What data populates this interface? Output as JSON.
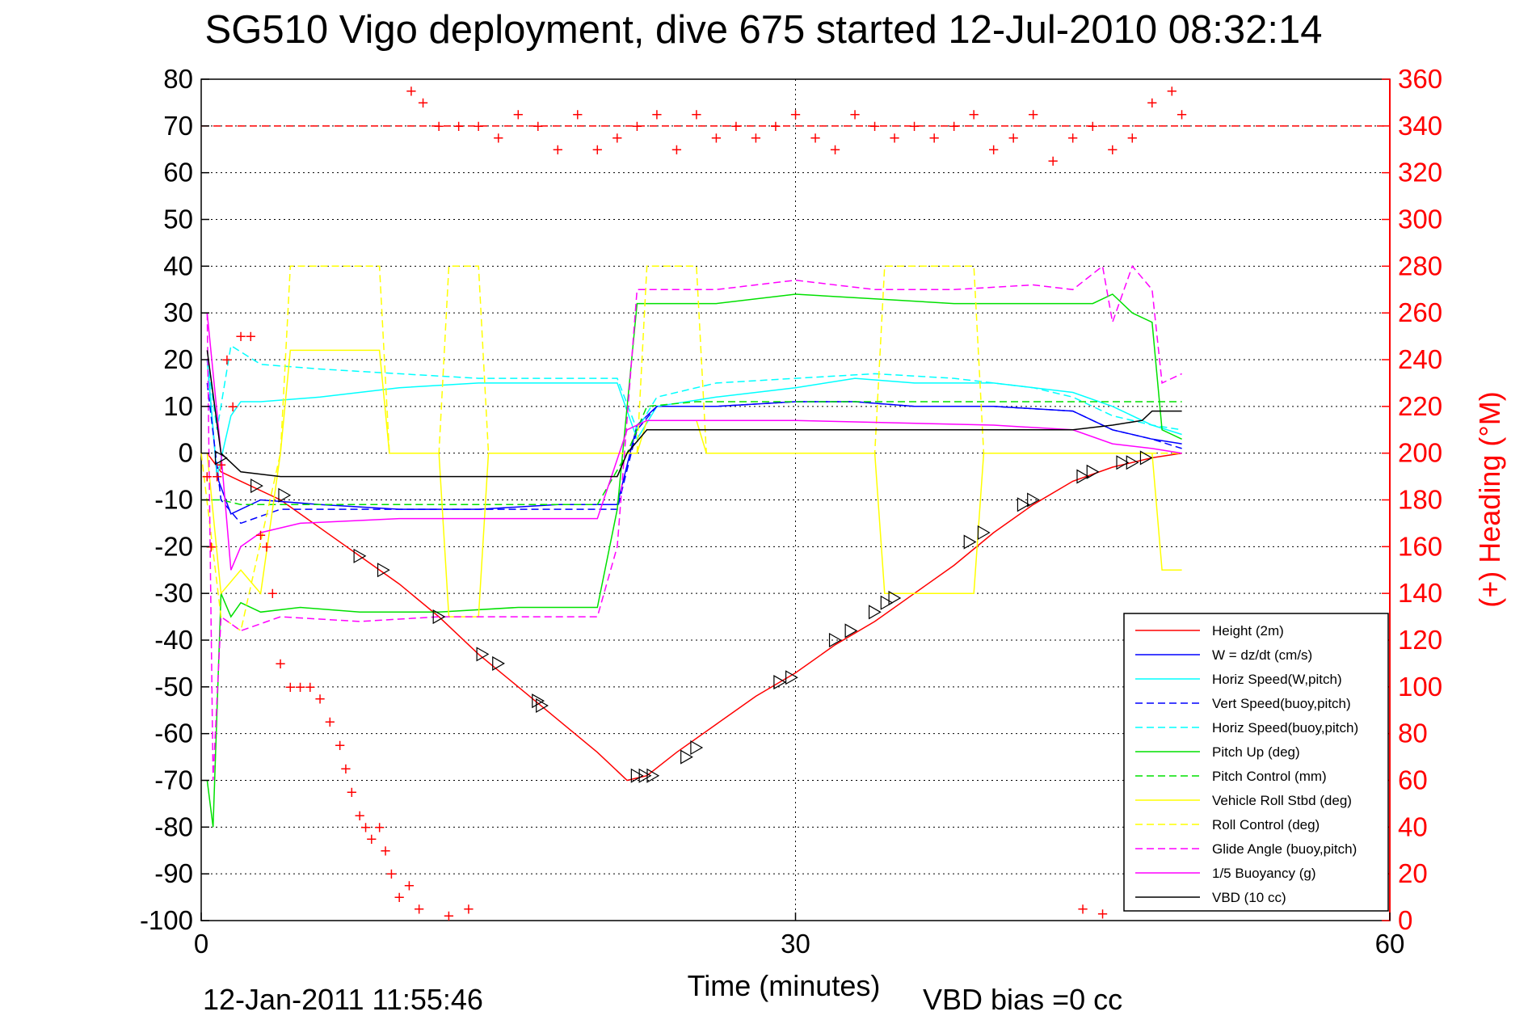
{
  "chart_data": {
    "type": "line",
    "title": "SG510 Vigo deployment, dive 675 started 12-Jul-2010 08:32:14",
    "xlabel": "Time (minutes)",
    "ylabel": "",
    "y2label": "(+) Heading (°M)",
    "xlim": [
      0,
      60
    ],
    "ylim": [
      -100,
      80
    ],
    "y2lim": [
      0,
      360
    ],
    "xticks": [
      0,
      30,
      60
    ],
    "yticks": [
      80,
      70,
      60,
      50,
      40,
      30,
      20,
      10,
      0,
      -10,
      -20,
      -30,
      -40,
      -50,
      -60,
      -70,
      -80,
      -90,
      -100
    ],
    "y2ticks": [
      360,
      340,
      320,
      300,
      280,
      260,
      240,
      220,
      200,
      180,
      160,
      140,
      120,
      100,
      80,
      60,
      40,
      20,
      0
    ],
    "grid": true,
    "legend_position": "bottom-right",
    "footer_left": "12-Jan-2011 11:55:46",
    "footer_right": "VBD bias =0 cc",
    "colors": {
      "red": "#ff0000",
      "blue": "#0000ff",
      "cyan": "#00ffff",
      "green": "#00e000",
      "yellow": "#ffff00",
      "magenta": "#ff00ff",
      "black": "#000000"
    },
    "series": [
      {
        "name": "Height (2m)",
        "color": "#ff0000",
        "style": "solid",
        "x": [
          0.3,
          1,
          2,
          4,
          6,
          8,
          10,
          12,
          14,
          16,
          18,
          20,
          21.5,
          22.5,
          24,
          26,
          28,
          30,
          32,
          34,
          36,
          38,
          40,
          42,
          44,
          46,
          48,
          49.5
        ],
        "y": [
          0,
          -4,
          -6,
          -10,
          -16,
          -22,
          -28,
          -35,
          -43,
          -50,
          -57,
          -64,
          -70,
          -69,
          -64,
          -58,
          -52,
          -47,
          -41,
          -36,
          -30,
          -24,
          -17,
          -11,
          -6,
          -3,
          -1,
          0
        ]
      },
      {
        "name": "W = dz/dt (cm/s)",
        "color": "#0000ff",
        "style": "solid",
        "x": [
          0.3,
          0.8,
          1.5,
          3,
          6,
          10,
          14,
          18,
          21,
          22,
          23,
          26,
          30,
          33,
          36,
          40,
          44,
          46,
          48,
          49.5
        ],
        "y": [
          20,
          -5,
          -13,
          -10,
          -11,
          -12,
          -12,
          -11,
          -11,
          6,
          10,
          10,
          11,
          11,
          10,
          10,
          9,
          5,
          3,
          2
        ]
      },
      {
        "name": "Horiz Speed(W,pitch)",
        "color": "#00ffff",
        "style": "solid",
        "x": [
          0.3,
          0.8,
          1.5,
          2,
          3,
          6,
          10,
          14,
          18,
          21,
          22,
          23,
          26,
          30,
          33,
          36,
          40,
          44,
          46,
          48,
          49.5
        ],
        "y": [
          20,
          -5,
          8,
          11,
          11,
          12,
          14,
          15,
          15,
          15,
          3,
          10,
          12,
          14,
          16,
          15,
          15,
          13,
          10,
          6,
          4
        ]
      },
      {
        "name": "Vert Speed(buoy,pitch)",
        "color": "#0000ff",
        "style": "dashed",
        "x": [
          0.3,
          1,
          2,
          4,
          8,
          12,
          16,
          21,
          22,
          23,
          26,
          30,
          33,
          36,
          40,
          44,
          46,
          48,
          49.5
        ],
        "y": [
          15,
          -10,
          -15,
          -12,
          -12,
          -12,
          -12,
          -12,
          5,
          10,
          10,
          11,
          11,
          10,
          10,
          9,
          5,
          3,
          1
        ]
      },
      {
        "name": "Horiz Speed(buoy,pitch)",
        "color": "#00ffff",
        "style": "dashed",
        "x": [
          0.3,
          0.8,
          1.5,
          3,
          6,
          10,
          14,
          18,
          21,
          22,
          23,
          26,
          30,
          34,
          38,
          42,
          44,
          46,
          48,
          49.5
        ],
        "y": [
          20,
          5,
          23,
          19,
          18,
          17,
          16,
          16,
          16,
          5,
          12,
          15,
          16,
          17,
          16,
          14,
          12,
          8,
          6,
          5
        ]
      },
      {
        "name": "Pitch Up (deg)",
        "color": "#00e000",
        "style": "solid",
        "x": [
          0.3,
          0.6,
          1,
          1.5,
          2,
          3,
          5,
          8,
          12,
          16,
          20,
          21,
          22,
          23,
          26,
          30,
          34,
          38,
          42,
          45,
          46,
          47,
          48,
          48.5,
          49.5
        ],
        "y": [
          -70,
          -80,
          -30,
          -35,
          -32,
          -34,
          -33,
          -34,
          -34,
          -33,
          -33,
          -12,
          32,
          32,
          32,
          34,
          33,
          32,
          32,
          32,
          34,
          30,
          28,
          5,
          3
        ]
      },
      {
        "name": "Pitch Control (mm)",
        "color": "#00e000",
        "style": "dashed",
        "x": [
          0,
          1,
          2,
          5,
          10,
          15,
          20,
          21.5,
          22.5,
          25,
          30,
          35,
          40,
          45,
          49.5
        ],
        "y": [
          -10,
          -10,
          -11,
          -11,
          -11,
          -11,
          -11,
          0,
          10,
          11,
          11,
          11,
          11,
          11,
          11
        ]
      },
      {
        "name": "Vehicle Roll Stbd (deg)",
        "color": "#ffff00",
        "style": "solid",
        "x": [
          0.3,
          1,
          2,
          3,
          4,
          4.5,
          9,
          9.5,
          12,
          12.5,
          14,
          14.5,
          22,
          22.5,
          25,
          25.5,
          34,
          34.5,
          39,
          39.5,
          48,
          48.5,
          49.5
        ],
        "y": [
          0,
          -30,
          -25,
          -30,
          0,
          22,
          22,
          0,
          0,
          -35,
          -35,
          0,
          0,
          7,
          7,
          0,
          0,
          -30,
          -30,
          0,
          0,
          -25,
          -25
        ]
      },
      {
        "name": "Roll Control (deg)",
        "color": "#ffff00",
        "style": "dashed",
        "x": [
          0,
          1,
          2,
          4,
          4.5,
          9,
          9.5,
          12,
          12.5,
          14,
          14.5,
          22,
          22.5,
          25,
          25.5,
          34,
          34.5,
          39,
          39.5,
          49.5
        ],
        "y": [
          0,
          -35,
          -38,
          0,
          40,
          40,
          0,
          0,
          40,
          40,
          0,
          0,
          40,
          40,
          0,
          0,
          40,
          40,
          0,
          0
        ]
      },
      {
        "name": "Glide Angle (buoy,pitch)",
        "color": "#ff00ff",
        "style": "dashed",
        "x": [
          0.3,
          0.6,
          1,
          2,
          4,
          8,
          12,
          16,
          20,
          21,
          22,
          23,
          26,
          30,
          34,
          38,
          42,
          44,
          45.5,
          46,
          47,
          48,
          48.5,
          49.5
        ],
        "y": [
          30,
          -70,
          -35,
          -38,
          -35,
          -36,
          -35,
          -35,
          -35,
          -20,
          35,
          35,
          35,
          37,
          35,
          35,
          36,
          35,
          40,
          28,
          40,
          35,
          15,
          17
        ]
      },
      {
        "name": "1/5 Buoyancy (g)",
        "color": "#ff00ff",
        "style": "solid",
        "x": [
          0.3,
          1,
          1.5,
          2,
          3,
          5,
          10,
          15,
          20,
          21.5,
          22.5,
          30,
          40,
          44,
          46,
          48,
          49.5
        ],
        "y": [
          30,
          0,
          -25,
          -20,
          -17,
          -15,
          -14,
          -14,
          -14,
          5,
          7,
          7,
          6,
          5,
          2,
          1,
          0
        ]
      },
      {
        "name": "VBD (10 cc)",
        "color": "#000000",
        "style": "solid",
        "x": [
          0.3,
          1,
          2,
          4,
          10,
          15,
          21,
          21.5,
          22.5,
          30,
          40,
          44,
          46,
          47.5,
          48,
          49.5
        ],
        "y": [
          22,
          0,
          -4,
          -5,
          -5,
          -5,
          -5,
          0,
          5,
          5,
          5,
          5,
          6,
          7,
          9,
          9
        ]
      }
    ],
    "heading_points": {
      "name": "(+) Heading (°M)",
      "color": "#ff0000",
      "axis": "right",
      "x": [
        0.3,
        0.5,
        0.8,
        1,
        1.3,
        1.6,
        2,
        2.5,
        3,
        3.3,
        3.6,
        4,
        4.5,
        5,
        5.5,
        6,
        6.5,
        7,
        7.3,
        7.6,
        8,
        8.3,
        8.6,
        9,
        9.3,
        9.6,
        10,
        10.5,
        11,
        12,
        13,
        14,
        15,
        16,
        17,
        18,
        19,
        20,
        21,
        22,
        23,
        24,
        25,
        26,
        27,
        28,
        29,
        30,
        31,
        32,
        33,
        34,
        35,
        36,
        37,
        38,
        39,
        40,
        41,
        42,
        43,
        44,
        45,
        46,
        47,
        48,
        49,
        49.5,
        10.6,
        11.2,
        12.5,
        13.5,
        44.5,
        45.5
      ],
      "y": [
        190,
        160,
        190,
        195,
        240,
        220,
        250,
        250,
        165,
        160,
        140,
        110,
        100,
        100,
        100,
        95,
        85,
        75,
        65,
        55,
        45,
        40,
        35,
        40,
        30,
        20,
        10,
        15,
        5,
        340,
        340,
        340,
        335,
        345,
        340,
        330,
        345,
        330,
        335,
        340,
        345,
        330,
        345,
        335,
        340,
        335,
        340,
        345,
        335,
        330,
        345,
        340,
        335,
        340,
        335,
        340,
        345,
        330,
        335,
        345,
        325,
        335,
        340,
        330,
        335,
        350,
        355,
        345,
        355,
        350,
        2,
        5,
        5,
        3
      ]
    },
    "markers": {
      "shape": "triangle",
      "color": "#000000",
      "x": [
        1,
        2.8,
        4.2,
        8,
        9.2,
        12,
        14.2,
        15,
        17,
        17.2,
        22,
        22.4,
        22.8,
        24.5,
        25,
        29.2,
        29.8,
        32,
        32.8,
        34,
        34.6,
        35,
        38.8,
        39.5,
        41.5,
        42,
        44.5,
        45,
        46.5,
        47,
        47.7
      ],
      "y": [
        -1,
        -7,
        -9,
        -22,
        -25,
        -35,
        -43,
        -45,
        -53,
        -54,
        -69,
        -69,
        -69,
        -65,
        -63,
        -49,
        -48,
        -40,
        -38,
        -34,
        -32,
        -31,
        -19,
        -17,
        -11,
        -10,
        -5,
        -4,
        -2,
        -2,
        -1
      ]
    }
  }
}
